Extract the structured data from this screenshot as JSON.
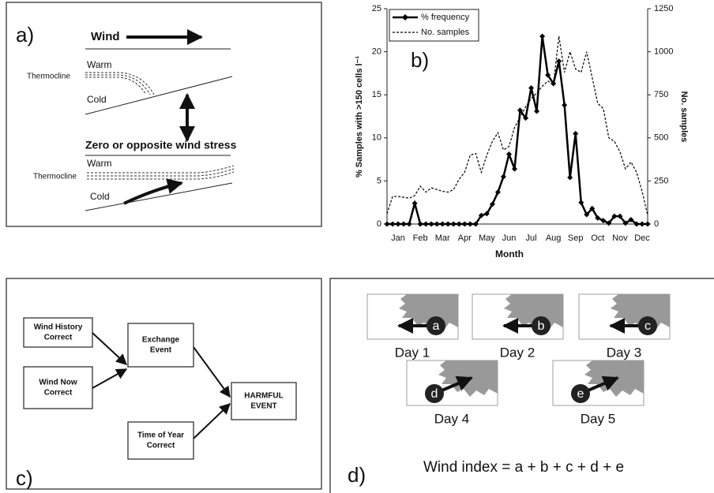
{
  "panel_a": {
    "label": "a)",
    "wind_label": "Wind",
    "upper_warm": "Warm",
    "upper_thermocline": "Thermocline",
    "upper_cold": "Cold",
    "reverse_label": "Zero or opposite wind stress",
    "lower_warm": "Warm",
    "lower_thermocline": "Thermocline",
    "lower_cold": "Cold"
  },
  "chart_data": {
    "type": "line",
    "annotation": "b)",
    "x_label": "Month",
    "y_label": "% Samples with >150 cells l⁻¹",
    "y2_label": "No. samples",
    "categories": [
      null,
      null,
      "Jan",
      null,
      null,
      null,
      "Feb",
      null,
      null,
      null,
      "Mar",
      null,
      null,
      null,
      "Apr",
      null,
      null,
      null,
      "May",
      null,
      null,
      null,
      "Jun",
      null,
      null,
      null,
      "Jul",
      null,
      null,
      null,
      "Aug",
      null,
      null,
      null,
      "Sep",
      null,
      null,
      null,
      "Oct",
      null,
      null,
      null,
      "Nov",
      null,
      null,
      null,
      "Dec",
      null
    ],
    "series": [
      {
        "name": "% frequency",
        "color": "#000000",
        "line_style": "solid",
        "marker": "diamond",
        "values": [
          0,
          0,
          0,
          0,
          0,
          2.4,
          0,
          0,
          0,
          0,
          0,
          0,
          0,
          0,
          0,
          0,
          0,
          1.0,
          1.2,
          2.3,
          3.7,
          5.5,
          8.1,
          6.4,
          13.2,
          12.3,
          15.8,
          13.1,
          21.8,
          17.3,
          16.3,
          18.9,
          13.8,
          5.4,
          10.5,
          2.5,
          1.1,
          1.8,
          0.7,
          0.4,
          0.1,
          0.9,
          0.9,
          0.1,
          0.5,
          0,
          0,
          0
        ]
      },
      {
        "name": "No. samples",
        "color": "#000000",
        "line_style": "dashed",
        "axis": "y2",
        "values": [
          60,
          160,
          160,
          155,
          150,
          165,
          220,
          185,
          210,
          200,
          190,
          185,
          200,
          260,
          300,
          400,
          410,
          300,
          400,
          480,
          530,
          430,
          450,
          560,
          620,
          680,
          730,
          760,
          800,
          830,
          810,
          1090,
          880,
          1000,
          900,
          880,
          1000,
          850,
          700,
          670,
          500,
          480,
          420,
          320,
          360,
          300,
          190,
          50
        ]
      }
    ],
    "ylim": [
      0,
      25
    ],
    "yticks": [
      0,
      5,
      10,
      15,
      20,
      25
    ],
    "y2lim": [
      0,
      1250
    ],
    "y2ticks": [
      0,
      250,
      500,
      750,
      1000,
      1250
    ],
    "legend": "upper left",
    "grid": false
  },
  "panel_c": {
    "label": "c)",
    "nodes": [
      {
        "lines": [
          "Wind History",
          "Correct"
        ]
      },
      {
        "lines": [
          "Wind Now",
          "Correct"
        ]
      },
      {
        "lines": [
          "Exchange",
          "Event"
        ]
      },
      {
        "lines": [
          "Time of Year",
          "Correct"
        ]
      },
      {
        "lines": [
          "HARMFUL",
          "EVENT"
        ]
      }
    ]
  },
  "panel_d": {
    "label": "d)",
    "days": [
      {
        "letter": "a",
        "day": "Day 1"
      },
      {
        "letter": "b",
        "day": "Day 2"
      },
      {
        "letter": "c",
        "day": "Day 3"
      },
      {
        "letter": "d",
        "day": "Day 4"
      },
      {
        "letter": "e",
        "day": "Day 5"
      }
    ],
    "formula": "Wind index = a + b + c + d + e"
  }
}
